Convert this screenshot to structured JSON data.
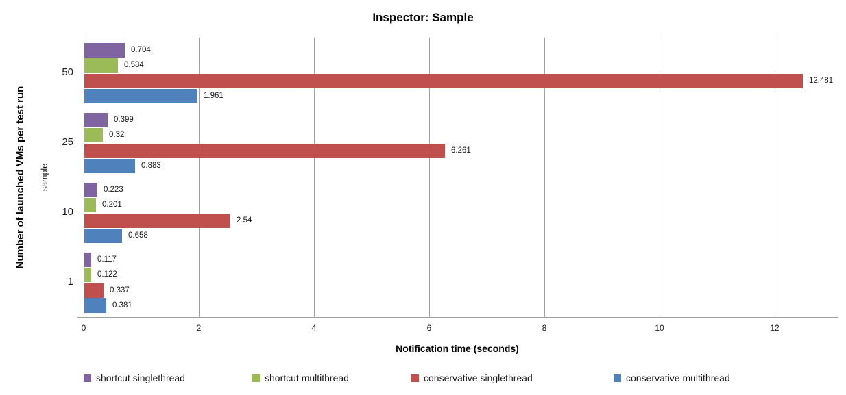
{
  "chart_data": {
    "type": "bar",
    "orientation": "horizontal",
    "title": "Inspector: Sample",
    "xlabel": "Notification time (seconds)",
    "ylabel": "Number of launched VMs per test run",
    "ylabel_secondary": "sample",
    "categories": [
      "50",
      "25",
      "10",
      "1"
    ],
    "series": [
      {
        "name": "shortcut singlethread",
        "color": "#8064A2",
        "values": [
          0.704,
          0.399,
          0.223,
          0.117
        ],
        "labels": [
          "0.704",
          "0.399",
          "0.223",
          "0.117"
        ]
      },
      {
        "name": "shortcut multithread",
        "color": "#9BBB59",
        "values": [
          0.584,
          0.32,
          0.201,
          0.122
        ],
        "labels": [
          "0.584",
          "0.32",
          "0.201",
          "0.122"
        ]
      },
      {
        "name": "conservative singlethread",
        "color": "#C0504D",
        "values": [
          12.481,
          6.261,
          2.54,
          0.337
        ],
        "labels": [
          "12.481",
          "6.261",
          "2.54",
          "0.337"
        ]
      },
      {
        "name": "conservative multithread",
        "color": "#4F81BD",
        "values": [
          1.961,
          0.883,
          0.658,
          0.381
        ],
        "labels": [
          "1.961",
          "0.883",
          "0.658",
          "0.381"
        ]
      }
    ],
    "x_ticks": [
      "0",
      "2",
      "4",
      "6",
      "8",
      "10",
      "12"
    ],
    "x_tick_values": [
      0,
      2,
      4,
      6,
      8,
      10,
      12
    ],
    "xlim": [
      0,
      13
    ],
    "grid": true,
    "legend_position": "bottom",
    "colors": {
      "gridline": "#A0A0A0",
      "axis_line": "#A0A0A0"
    }
  }
}
